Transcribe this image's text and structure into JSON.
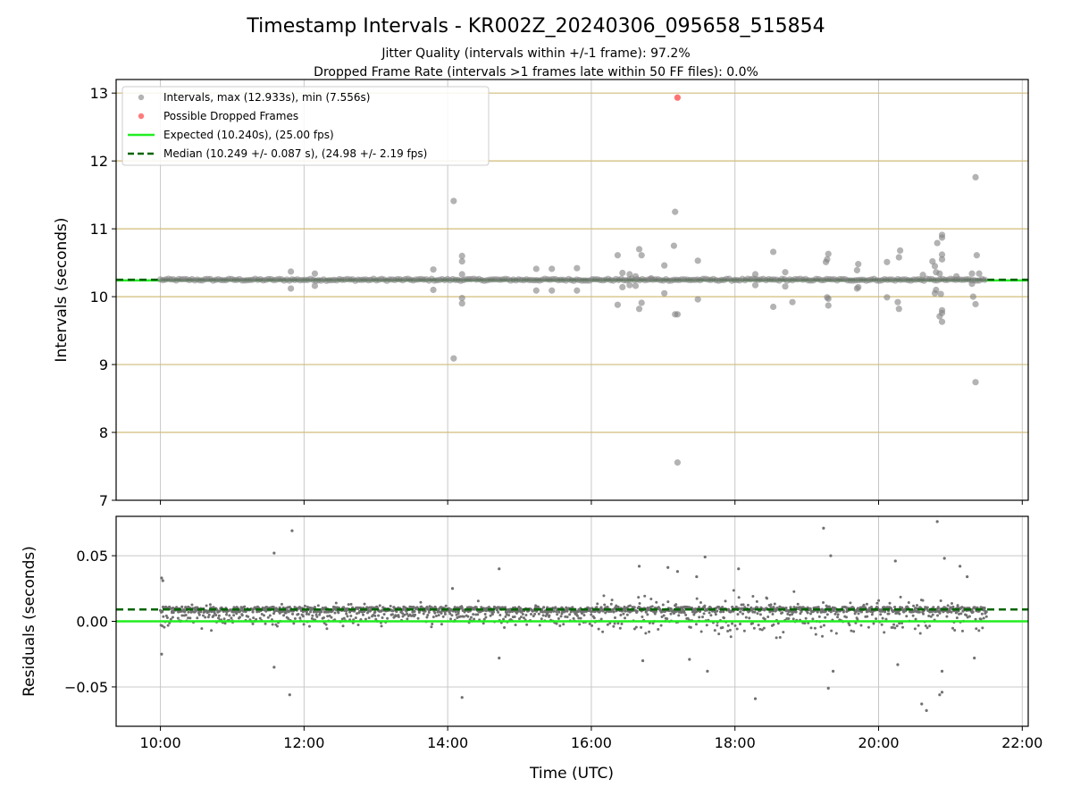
{
  "chart_data": [
    {
      "type": "scatter",
      "title": "Timestamp Intervals - KR002Z_20240306_095658_515854",
      "subtitle_lines": [
        "Jitter Quality (intervals within +/-1 frame): 97.2%",
        "Dropped Frame Rate (intervals >1 frames late within 50 FF files): 0.0%"
      ],
      "xlabel": "Time (UTC)",
      "ylabel": "Intervals (seconds)",
      "xlim": [
        "09:23",
        "22:05"
      ],
      "ylim": [
        7,
        13.2
      ],
      "yticks": [
        7,
        8,
        9,
        10,
        11,
        12,
        13
      ],
      "xticks": [
        "10:00",
        "12:00",
        "14:00",
        "16:00",
        "18:00",
        "20:00",
        "22:00"
      ],
      "grid": true,
      "legend_position": "upper-left",
      "legend": [
        "Intervals, max (12.933s), min (7.556s)",
        "Possible Dropped Frames",
        "Expected (10.240s), (25.00 fps)",
        "Median (10.249 +/- 0.087 s), (24.98 +/- 2.19 fps)"
      ],
      "expected_interval": 10.24,
      "median_interval": 10.249,
      "time_range": [
        "10:00",
        "21:30"
      ],
      "baseline_interval": 10.249,
      "outliers": [
        {
          "time": "11:49",
          "value": 10.37
        },
        {
          "time": "11:49",
          "value": 10.12
        },
        {
          "time": "12:09",
          "value": 10.34
        },
        {
          "time": "12:09",
          "value": 10.16
        },
        {
          "time": "13:48",
          "value": 10.4
        },
        {
          "time": "13:48",
          "value": 10.1
        },
        {
          "time": "14:05",
          "value": 11.41
        },
        {
          "time": "14:05",
          "value": 9.09
        },
        {
          "time": "14:12",
          "value": 10.6
        },
        {
          "time": "14:12",
          "value": 10.52
        },
        {
          "time": "14:12",
          "value": 10.33
        },
        {
          "time": "14:12",
          "value": 9.98
        },
        {
          "time": "14:12",
          "value": 9.9
        },
        {
          "time": "15:14",
          "value": 10.41
        },
        {
          "time": "15:14",
          "value": 10.09
        },
        {
          "time": "15:27",
          "value": 10.41
        },
        {
          "time": "15:27",
          "value": 10.09
        },
        {
          "time": "15:48",
          "value": 10.42
        },
        {
          "time": "15:48",
          "value": 10.09
        },
        {
          "time": "16:22",
          "value": 10.61
        },
        {
          "time": "16:22",
          "value": 9.88
        },
        {
          "time": "16:26",
          "value": 10.35
        },
        {
          "time": "16:26",
          "value": 10.14
        },
        {
          "time": "16:32",
          "value": 10.33
        },
        {
          "time": "16:32",
          "value": 10.17
        },
        {
          "time": "16:37",
          "value": 10.3
        },
        {
          "time": "16:37",
          "value": 10.16
        },
        {
          "time": "16:40",
          "value": 10.7
        },
        {
          "time": "16:42",
          "value": 10.61
        },
        {
          "time": "16:42",
          "value": 9.91
        },
        {
          "time": "16:40",
          "value": 9.82
        },
        {
          "time": "16:50",
          "value": 10.27
        },
        {
          "time": "17:01",
          "value": 10.46
        },
        {
          "time": "17:01",
          "value": 10.05
        },
        {
          "time": "17:09",
          "value": 10.75
        },
        {
          "time": "17:10",
          "value": 11.25
        },
        {
          "time": "17:10",
          "value": 9.74
        },
        {
          "time": "17:12",
          "value": 9.74
        },
        {
          "time": "17:12",
          "value": 7.556
        },
        {
          "time": "17:29",
          "value": 10.53
        },
        {
          "time": "17:29",
          "value": 9.96
        },
        {
          "time": "18:17",
          "value": 10.33
        },
        {
          "time": "18:17",
          "value": 10.17
        },
        {
          "time": "18:32",
          "value": 10.66
        },
        {
          "time": "18:32",
          "value": 9.85
        },
        {
          "time": "18:42",
          "value": 10.36
        },
        {
          "time": "18:42",
          "value": 10.15
        },
        {
          "time": "18:48",
          "value": 9.92
        },
        {
          "time": "19:16",
          "value": 10.51
        },
        {
          "time": "19:17",
          "value": 10.55
        },
        {
          "time": "19:18",
          "value": 10.63
        },
        {
          "time": "19:17",
          "value": 9.99
        },
        {
          "time": "19:18",
          "value": 9.97
        },
        {
          "time": "19:18",
          "value": 9.87
        },
        {
          "time": "19:43",
          "value": 10.48
        },
        {
          "time": "19:42",
          "value": 10.39
        },
        {
          "time": "19:42",
          "value": 10.12
        },
        {
          "time": "19:43",
          "value": 10.14
        },
        {
          "time": "20:07",
          "value": 10.51
        },
        {
          "time": "20:07",
          "value": 9.99
        },
        {
          "time": "20:18",
          "value": 10.68
        },
        {
          "time": "20:17",
          "value": 10.58
        },
        {
          "time": "20:16",
          "value": 9.92
        },
        {
          "time": "20:17",
          "value": 9.82
        },
        {
          "time": "20:37",
          "value": 10.32
        },
        {
          "time": "20:45",
          "value": 10.52
        },
        {
          "time": "20:47",
          "value": 10.45
        },
        {
          "time": "20:47",
          "value": 10.05
        },
        {
          "time": "20:48",
          "value": 10.36
        },
        {
          "time": "20:48",
          "value": 10.1
        },
        {
          "time": "20:49",
          "value": 10.79
        },
        {
          "time": "20:51",
          "value": 9.71
        },
        {
          "time": "20:53",
          "value": 10.91
        },
        {
          "time": "20:53",
          "value": 10.87
        },
        {
          "time": "20:53",
          "value": 10.62
        },
        {
          "time": "20:53",
          "value": 10.55
        },
        {
          "time": "20:53",
          "value": 9.8
        },
        {
          "time": "20:53",
          "value": 9.76
        },
        {
          "time": "20:53",
          "value": 9.63
        },
        {
          "time": "20:51",
          "value": 10.34
        },
        {
          "time": "20:52",
          "value": 10.04
        },
        {
          "time": "21:05",
          "value": 10.3
        },
        {
          "time": "21:18",
          "value": 10.34
        },
        {
          "time": "21:18",
          "value": 10.19
        },
        {
          "time": "21:19",
          "value": 10.0
        },
        {
          "time": "21:21",
          "value": 11.76
        },
        {
          "time": "21:22",
          "value": 10.61
        },
        {
          "time": "21:21",
          "value": 9.89
        },
        {
          "time": "21:21",
          "value": 8.74
        },
        {
          "time": "21:24",
          "value": 10.34
        }
      ],
      "dropped_frames": [
        {
          "time": "17:12",
          "value": 12.933
        }
      ]
    },
    {
      "type": "scatter",
      "xlabel": "Time (UTC)",
      "ylabel": "Residuals (seconds)",
      "xlim": [
        "09:23",
        "22:05"
      ],
      "ylim": [
        -0.08,
        0.08
      ],
      "yticks": [
        -0.05,
        0.0,
        0.05
      ],
      "ytick_labels": [
        "−0.05",
        "0.00",
        "0.05"
      ],
      "xticks": [
        "10:00",
        "12:00",
        "14:00",
        "16:00",
        "18:00",
        "20:00",
        "22:00"
      ],
      "grid": true,
      "expected_residual": 0.0,
      "median_residual": 0.009,
      "time_range": [
        "10:00",
        "21:30"
      ],
      "residual_outliers": [
        {
          "time": "10:01",
          "value": 0.033
        },
        {
          "time": "10:02",
          "value": 0.031
        },
        {
          "time": "10:01",
          "value": -0.025
        },
        {
          "time": "11:35",
          "value": 0.052
        },
        {
          "time": "11:35",
          "value": -0.035
        },
        {
          "time": "11:50",
          "value": 0.069
        },
        {
          "time": "11:48",
          "value": -0.056
        },
        {
          "time": "14:04",
          "value": 0.025
        },
        {
          "time": "14:12",
          "value": -0.058
        },
        {
          "time": "14:43",
          "value": -0.028
        },
        {
          "time": "14:43",
          "value": 0.04
        },
        {
          "time": "16:40",
          "value": 0.042
        },
        {
          "time": "16:43",
          "value": -0.03
        },
        {
          "time": "17:04",
          "value": 0.041
        },
        {
          "time": "17:12",
          "value": 0.038
        },
        {
          "time": "17:22",
          "value": -0.029
        },
        {
          "time": "17:28",
          "value": 0.034
        },
        {
          "time": "17:35",
          "value": 0.049
        },
        {
          "time": "17:37",
          "value": -0.038
        },
        {
          "time": "18:03",
          "value": 0.04
        },
        {
          "time": "18:17",
          "value": -0.059
        },
        {
          "time": "19:14",
          "value": 0.071
        },
        {
          "time": "19:18",
          "value": -0.051
        },
        {
          "time": "19:20",
          "value": 0.05
        },
        {
          "time": "19:22",
          "value": -0.038
        },
        {
          "time": "20:14",
          "value": 0.046
        },
        {
          "time": "20:16",
          "value": -0.033
        },
        {
          "time": "20:36",
          "value": -0.063
        },
        {
          "time": "20:40",
          "value": -0.068
        },
        {
          "time": "20:49",
          "value": 0.076
        },
        {
          "time": "20:53",
          "value": -0.038
        },
        {
          "time": "20:53",
          "value": -0.054
        },
        {
          "time": "20:55",
          "value": 0.048
        },
        {
          "time": "21:08",
          "value": 0.042
        },
        {
          "time": "21:14",
          "value": 0.034
        },
        {
          "time": "21:20",
          "value": -0.028
        },
        {
          "time": "20:51",
          "value": -0.056
        }
      ]
    }
  ],
  "colors": {
    "points": "#808080",
    "points_small": "#707070",
    "dropped": "#ff4444",
    "expected": "#22ee22",
    "median": "#006400",
    "grid_x": "#c8c8c8",
    "grid_y": "#d0bc7a",
    "axis": "#000000"
  }
}
